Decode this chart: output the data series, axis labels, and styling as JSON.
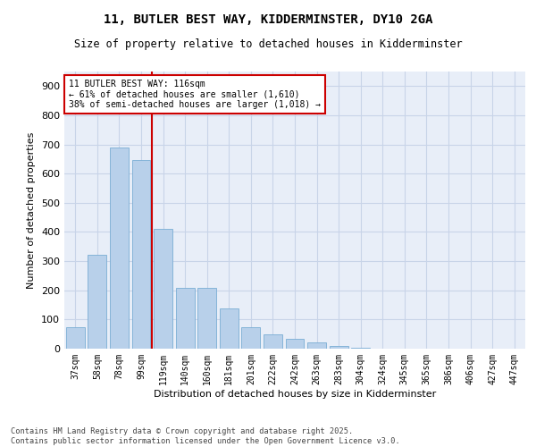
{
  "title_line1": "11, BUTLER BEST WAY, KIDDERMINSTER, DY10 2GA",
  "title_line2": "Size of property relative to detached houses in Kidderminster",
  "xlabel": "Distribution of detached houses by size in Kidderminster",
  "ylabel": "Number of detached properties",
  "categories": [
    "37sqm",
    "58sqm",
    "78sqm",
    "99sqm",
    "119sqm",
    "140sqm",
    "160sqm",
    "181sqm",
    "201sqm",
    "222sqm",
    "242sqm",
    "263sqm",
    "283sqm",
    "304sqm",
    "324sqm",
    "345sqm",
    "365sqm",
    "386sqm",
    "406sqm",
    "427sqm",
    "447sqm"
  ],
  "values": [
    75,
    323,
    690,
    647,
    411,
    208,
    208,
    138,
    73,
    48,
    33,
    22,
    10,
    3,
    1,
    0,
    0,
    0,
    0,
    0,
    0
  ],
  "bar_color": "#b8d0ea",
  "bar_edge_color": "#7aadd4",
  "vline_x": 3.5,
  "vline_color": "#cc0000",
  "annotation_text": "11 BUTLER BEST WAY: 116sqm\n← 61% of detached houses are smaller (1,610)\n38% of semi-detached houses are larger (1,018) →",
  "annotation_box_color": "#cc0000",
  "ylim": [
    0,
    950
  ],
  "yticks": [
    0,
    100,
    200,
    300,
    400,
    500,
    600,
    700,
    800,
    900
  ],
  "grid_color": "#c8d4e8",
  "background_color": "#e8eef8",
  "footer_line1": "Contains HM Land Registry data © Crown copyright and database right 2025.",
  "footer_line2": "Contains public sector information licensed under the Open Government Licence v3.0."
}
